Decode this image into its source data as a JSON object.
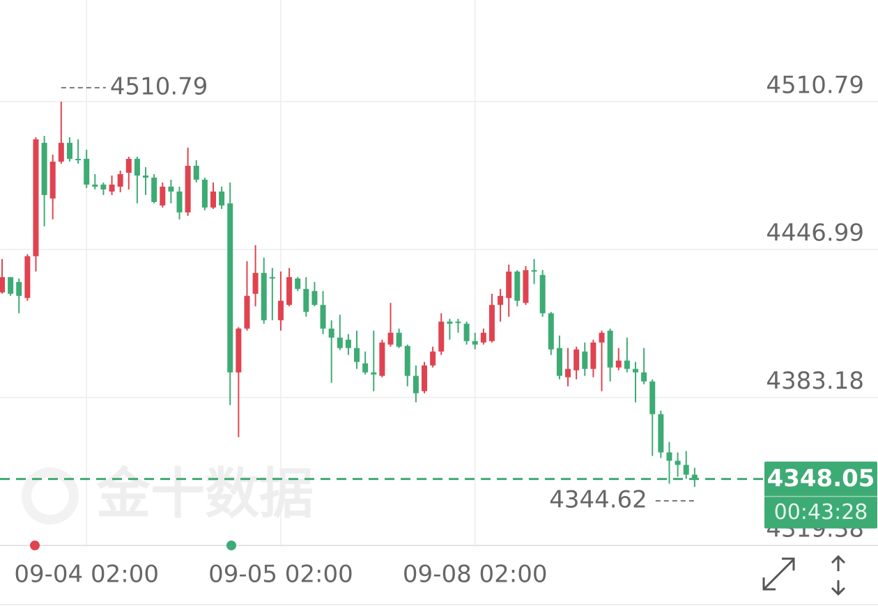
{
  "chart_data": {
    "type": "candlestick",
    "up_color": "#e0434f",
    "down_color": "#3dab74",
    "grid": true,
    "watermark": "金十数据",
    "categories": [
      null,
      null,
      null,
      null,
      null,
      null,
      null,
      null,
      null,
      null,
      "09-04 02:00",
      null,
      null,
      null,
      null,
      null,
      null,
      null,
      null,
      null,
      null,
      null,
      null,
      null,
      null,
      null,
      null,
      null,
      null,
      null,
      null,
      null,
      null,
      "09-05 02:00",
      null,
      null,
      null,
      null,
      null,
      null,
      null,
      null,
      null,
      null,
      null,
      null,
      null,
      null,
      null,
      null,
      null,
      null,
      null,
      null,
      null,
      null,
      "09-08 02:00",
      null,
      null,
      null,
      null,
      null,
      null,
      null,
      null,
      null,
      null,
      null,
      null,
      null,
      null,
      null,
      null,
      null,
      null,
      null,
      null,
      null,
      null,
      null,
      null,
      null,
      null
    ],
    "open": [
      4428.5,
      4435.1,
      4433.0,
      4426.1,
      4444.1,
      4493.0,
      4469.0,
      4484.9,
      4493.0,
      4486.1,
      4486.1,
      4475.0,
      4475.0,
      4472.0,
      4474.1,
      4480.1,
      4486.1,
      4478.9,
      4478.0,
      4466.0,
      4474.1,
      4472.0,
      4463.0,
      4483.1,
      4477.1,
      4465.1,
      4472.0,
      4466.9,
      4394.0,
      4412.9,
      4427.9,
      4436.9,
      4435.1,
      4416.5,
      4423.1,
      4434.5,
      4430.0,
      4429.1,
      4423.1,
      4412.9,
      4409.0,
      4408.1,
      4404.5,
      4397.9,
      4394.0,
      4392.5,
      4406.0,
      4411.1,
      4405.4,
      4392.5,
      4385.9,
      4397.0,
      4403.0,
      4415.9,
      4415.9,
      4415.0,
      4407.5,
      4406.9,
      4407.5,
      4423.1,
      4426.1,
      4437.5,
      4424.0,
      4438.1,
      4436.0,
      4419.5,
      4404.5,
      4391.9,
      4394.9,
      4403.0,
      4395.5,
      4406.9,
      4412.0,
      4396.1,
      4399.1,
      4395.5,
      4394.0,
      4390.1,
      4376.0,
      4359.5,
      4355.9,
      4354.1,
      4349.9
    ],
    "high": [
      4442.9,
      4435.1,
      4434.5,
      4445.0,
      4495.4,
      4496.0,
      4487.9,
      4510.79,
      4495.4,
      4494.5,
      4490.0,
      4479.5,
      4475.9,
      4478.9,
      4481.0,
      4487.0,
      4487.0,
      4482.5,
      4479.5,
      4475.9,
      4477.1,
      4474.1,
      4490.9,
      4485.5,
      4478.0,
      4475.9,
      4474.1,
      4475.9,
      4413.5,
      4442.0,
      4448.9,
      4443.5,
      4439.0,
      4437.5,
      4439.0,
      4435.1,
      4435.1,
      4433.0,
      4429.1,
      4416.5,
      4418.9,
      4410.5,
      4412.0,
      4403.0,
      4412.0,
      4408.1,
      4424.0,
      4412.9,
      4406.0,
      4397.0,
      4398.5,
      4405.1,
      4419.5,
      4417.1,
      4417.1,
      4415.9,
      4411.1,
      4412.9,
      4427.9,
      4430.0,
      4440.5,
      4438.1,
      4439.9,
      4442.9,
      4438.1,
      4420.1,
      4409.9,
      4404.5,
      4405.1,
      4406.9,
      4408.1,
      4412.0,
      4412.9,
      4404.5,
      4409.0,
      4398.5,
      4404.5,
      4391.0,
      4377.5,
      4364.0,
      4359.5,
      4360.1,
      4352.9
    ],
    "low": [
      4428.0,
      4427.0,
      4419.5,
      4424.9,
      4437.5,
      4457.0,
      4460.0,
      4484.0,
      4484.9,
      4484.0,
      4473.5,
      4472.9,
      4470.5,
      4470.5,
      4471.7,
      4472.9,
      4466.9,
      4470.5,
      4466.9,
      4465.1,
      4466.9,
      4460.0,
      4461.5,
      4475.9,
      4463.9,
      4464.5,
      4464.5,
      4379.9,
      4366.1,
      4412.0,
      4422.5,
      4415.0,
      4416.5,
      4412.0,
      4422.5,
      4429.1,
      4418.0,
      4422.5,
      4410.5,
      4389.5,
      4403.6,
      4401.5,
      4395.5,
      4393.1,
      4385.9,
      4391.9,
      4405.1,
      4404.5,
      4388.0,
      4381.1,
      4385.0,
      4396.1,
      4401.5,
      4408.1,
      4411.1,
      4406.0,
      4403.9,
      4406.0,
      4406.9,
      4415.9,
      4418.0,
      4422.5,
      4423.1,
      4432.1,
      4418.0,
      4401.5,
      4391.0,
      4388.0,
      4391.0,
      4392.5,
      4391.9,
      4385.9,
      4390.1,
      4394.9,
      4394.0,
      4381.1,
      4388.9,
      4358.0,
      4357.1,
      4346.0,
      4349.0,
      4348.1,
      4344.62
    ],
    "close": [
      4435.1,
      4427.9,
      4427.0,
      4444.1,
      4494.5,
      4470.5,
      4484.9,
      4493.0,
      4486.1,
      4485.5,
      4475.0,
      4474.1,
      4472.9,
      4475.0,
      4479.5,
      4486.1,
      4478.9,
      4478.0,
      4467.5,
      4474.1,
      4472.0,
      4463.0,
      4483.1,
      4477.1,
      4465.1,
      4472.0,
      4466.0,
      4394.0,
      4412.9,
      4427.0,
      4436.9,
      4416.5,
      4434.5,
      4424.9,
      4435.1,
      4430.0,
      4420.1,
      4423.1,
      4412.9,
      4409.0,
      4404.5,
      4404.5,
      4398.5,
      4394.0,
      4393.1,
      4406.9,
      4411.1,
      4405.1,
      4392.5,
      4385.0,
      4397.0,
      4403.0,
      4415.9,
      4415.0,
      4415.6,
      4407.5,
      4406.0,
      4411.1,
      4423.1,
      4427.0,
      4437.5,
      4424.9,
      4438.1,
      4437.5,
      4419.5,
      4403.9,
      4392.5,
      4395.5,
      4403.9,
      4395.5,
      4406.9,
      4411.1,
      4396.1,
      4399.1,
      4395.5,
      4394.0,
      4390.1,
      4376.0,
      4359.5,
      4355.9,
      4354.1,
      4349.9,
      4348.05
    ],
    "ylim": [
      4319.38,
      4554.6
    ],
    "yticks": [
      4510.79,
      4446.99,
      4383.18,
      4319.38
    ],
    "max_marker": 4510.79,
    "min_marker": 4344.62,
    "last_price": 4348.05,
    "countdown": "00:43:28"
  }
}
